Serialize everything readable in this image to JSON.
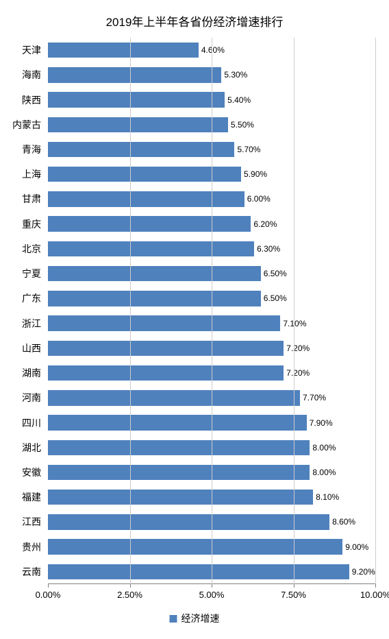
{
  "chart": {
    "type": "horizontal-bar",
    "title": "2019年上半年各省份经济增速排行",
    "title_fontsize": 17,
    "background_color": "#ffffff",
    "bar_color": "#4f81bd",
    "grid_color": "#cccccc",
    "axis_color": "#808080",
    "text_color": "#000000",
    "label_fontsize": 14,
    "value_label_fontsize": 12,
    "xaxis_label_fontsize": 13,
    "xlim": [
      0,
      10
    ],
    "xticks": [
      0,
      2.5,
      5,
      7.5,
      10
    ],
    "xtick_labels": [
      "0.00%",
      "2.50%",
      "5.00%",
      "7.50%",
      "10.00%"
    ],
    "bar_height_ratio": 0.62,
    "legend": {
      "label": "经济增速",
      "swatch_color": "#4f81bd"
    },
    "data": [
      {
        "province": "天津",
        "value": 4.6,
        "label": "4.60%"
      },
      {
        "province": "海南",
        "value": 5.3,
        "label": "5.30%"
      },
      {
        "province": "陕西",
        "value": 5.4,
        "label": "5.40%"
      },
      {
        "province": "内蒙古",
        "value": 5.5,
        "label": "5.50%"
      },
      {
        "province": "青海",
        "value": 5.7,
        "label": "5.70%"
      },
      {
        "province": "上海",
        "value": 5.9,
        "label": "5.90%"
      },
      {
        "province": "甘肃",
        "value": 6.0,
        "label": "6.00%"
      },
      {
        "province": "重庆",
        "value": 6.2,
        "label": "6.20%"
      },
      {
        "province": "北京",
        "value": 6.3,
        "label": "6.30%"
      },
      {
        "province": "宁夏",
        "value": 6.5,
        "label": "6.50%"
      },
      {
        "province": "广东",
        "value": 6.5,
        "label": "6.50%"
      },
      {
        "province": "浙江",
        "value": 7.1,
        "label": "7.10%"
      },
      {
        "province": "山西",
        "value": 7.2,
        "label": "7.20%"
      },
      {
        "province": "湖南",
        "value": 7.2,
        "label": "7.20%"
      },
      {
        "province": "河南",
        "value": 7.7,
        "label": "7.70%"
      },
      {
        "province": "四川",
        "value": 7.9,
        "label": "7.90%"
      },
      {
        "province": "湖北",
        "value": 8.0,
        "label": "8.00%"
      },
      {
        "province": "安徽",
        "value": 8.0,
        "label": "8.00%"
      },
      {
        "province": "福建",
        "value": 8.1,
        "label": "8.10%"
      },
      {
        "province": "江西",
        "value": 8.6,
        "label": "8.60%"
      },
      {
        "province": "贵州",
        "value": 9.0,
        "label": "9.00%"
      },
      {
        "province": "云南",
        "value": 9.2,
        "label": "9.20%"
      }
    ]
  }
}
